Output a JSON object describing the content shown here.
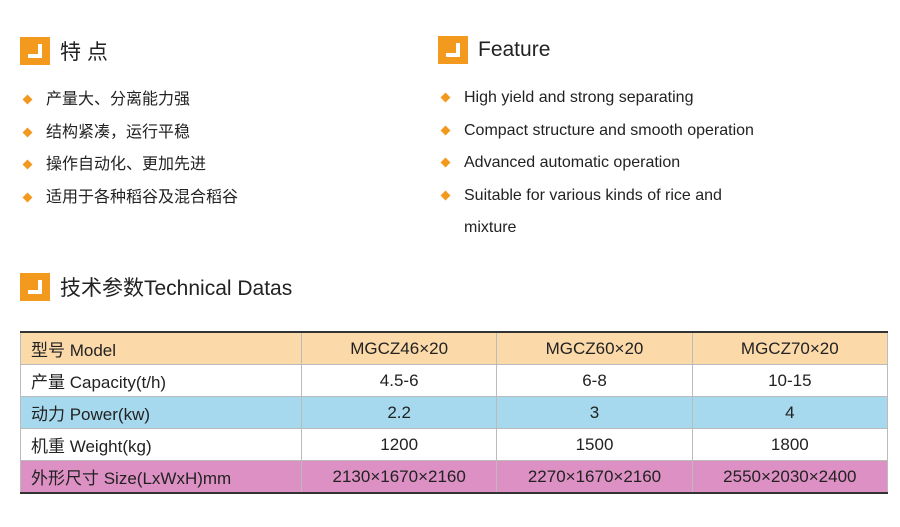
{
  "features_cn": {
    "title": "特 点",
    "items": [
      "产量大、分离能力强",
      "结构紧凑，运行平稳",
      "操作自动化、更加先进",
      "适用于各种稻谷及混合稻谷"
    ]
  },
  "features_en": {
    "title": "Feature",
    "items": [
      "High yield and strong separating",
      "Compact structure and smooth operation",
      "Advanced automatic operation",
      "Suitable for various kinds of rice and mixture"
    ]
  },
  "specs": {
    "title": "技术参数Technical Datas",
    "rows": [
      [
        "型号  Model",
        "MGCZ46×20",
        "MGCZ60×20",
        "MGCZ70×20"
      ],
      [
        "产量  Capacity(t/h)",
        "4.5-6",
        "6-8",
        "10-15"
      ],
      [
        "动力  Power(kw)",
        "2.2",
        "3",
        "4"
      ],
      [
        "机重  Weight(kg)",
        "1200",
        "1500",
        "1800"
      ],
      [
        "外形尺寸  Size(LxWxH)mm",
        "2130×1670×2160",
        "2270×1670×2160",
        "2550×2030×2400"
      ]
    ]
  }
}
